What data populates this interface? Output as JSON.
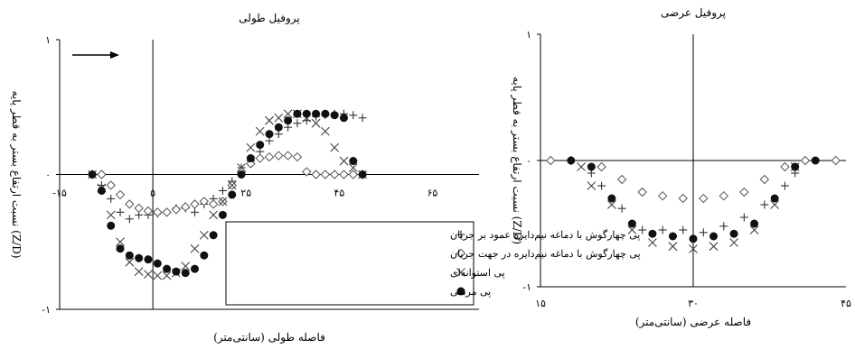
{
  "chart_data": [
    {
      "type": "scatter",
      "title": "پروفیل طولی",
      "xlabel": "فاصله طولی (سانتی‌متر)",
      "ylabel": "نسبت ارتفاع بستر به قطر پایه (Z/D)",
      "xlim": [
        -15,
        75
      ],
      "ylim": [
        -1,
        1
      ],
      "xticks": [
        "-۱۵",
        "۵",
        "۲۵",
        "۴۵",
        "۶۵"
      ],
      "xtick_values": [
        -15,
        5,
        25,
        45,
        65
      ],
      "yticks": [
        "-۱",
        "۰",
        "۱"
      ],
      "ytick_values": [
        -1,
        0,
        1
      ],
      "flow_arrow": "right",
      "legend_position": "bottom-right",
      "series": [
        {
          "name": "پی چهارگوش با دماغه نیم‌دایره عمود بر جریان",
          "marker": "plus",
          "x": [
            -8,
            -6,
            -4,
            -2,
            0,
            2,
            4,
            6,
            8,
            10,
            12,
            14,
            16,
            18,
            20,
            22,
            24,
            26,
            28,
            30,
            32,
            34,
            36,
            38,
            40,
            42,
            44,
            46,
            48,
            50
          ],
          "y": [
            0,
            -0.08,
            -0.18,
            -0.28,
            -0.33,
            -0.3,
            -0.3,
            -0.29,
            -0.28,
            -0.25,
            -0.25,
            -0.28,
            -0.22,
            -0.18,
            -0.12,
            -0.05,
            0.05,
            0.1,
            0.17,
            0.25,
            0.3,
            0.35,
            0.38,
            0.4,
            0.43,
            0.44,
            0.45,
            0.45,
            0.44,
            0.42
          ]
        },
        {
          "name": "پی چهارگوش با دماغه نیم‌دایره در جهت جریان",
          "marker": "diamond",
          "x": [
            -8,
            -6,
            -4,
            -2,
            0,
            2,
            4,
            6,
            8,
            10,
            12,
            14,
            16,
            18,
            20,
            22,
            24,
            26,
            28,
            30,
            32,
            34,
            36,
            38,
            40,
            42,
            44,
            46,
            48,
            50
          ],
          "y": [
            0,
            0,
            -0.08,
            -0.15,
            -0.22,
            -0.25,
            -0.27,
            -0.28,
            -0.28,
            -0.26,
            -0.24,
            -0.22,
            -0.2,
            -0.22,
            -0.2,
            -0.08,
            0.02,
            0.08,
            0.12,
            0.13,
            0.14,
            0.14,
            0.13,
            0.02,
            0,
            0,
            0,
            0,
            0,
            0
          ]
        },
        {
          "name": "پی استوانه‌ای",
          "marker": "cross",
          "x": [
            -8,
            -6,
            -4,
            -2,
            0,
            2,
            4,
            6,
            8,
            10,
            12,
            14,
            16,
            18,
            20,
            22,
            24,
            26,
            28,
            30,
            32,
            34,
            36,
            38,
            40,
            42,
            44,
            46,
            48,
            50
          ],
          "y": [
            0,
            -0.1,
            -0.3,
            -0.5,
            -0.65,
            -0.72,
            -0.74,
            -0.75,
            -0.75,
            -0.73,
            -0.68,
            -0.55,
            -0.45,
            -0.3,
            -0.2,
            -0.08,
            0.05,
            0.2,
            0.32,
            0.4,
            0.42,
            0.45,
            0.45,
            0.42,
            0.38,
            0.32,
            0.2,
            0.1,
            0.05,
            0
          ]
        },
        {
          "name": "پی مربعی",
          "marker": "circle",
          "x": [
            -8,
            -6,
            -4,
            -2,
            0,
            2,
            4,
            6,
            8,
            10,
            12,
            14,
            16,
            18,
            20,
            22,
            24,
            26,
            28,
            30,
            32,
            34,
            36,
            38,
            40,
            42,
            44,
            46,
            48,
            50
          ],
          "y": [
            0,
            -0.12,
            -0.38,
            -0.55,
            -0.6,
            -0.62,
            -0.63,
            -0.66,
            -0.7,
            -0.72,
            -0.73,
            -0.7,
            -0.6,
            -0.45,
            -0.3,
            -0.15,
            0,
            0.12,
            0.22,
            0.3,
            0.35,
            0.4,
            0.45,
            0.45,
            0.45,
            0.45,
            0.44,
            0.42,
            0.1,
            0
          ]
        }
      ]
    },
    {
      "type": "scatter",
      "title": "پروفیل عرضی",
      "xlabel": "فاصله عرضی (سانتی‌متر)",
      "ylabel": "نسبت ارتفاع بستر به قطر پایه (Z/D)",
      "xlim": [
        15,
        45
      ],
      "ylim": [
        -1,
        1
      ],
      "xticks": [
        "۱۵",
        "۳۰",
        "۴۵"
      ],
      "xtick_values": [
        15,
        30,
        45
      ],
      "yticks": [
        "-۱",
        "۰",
        "۱"
      ],
      "ytick_values": [
        -1,
        0,
        1
      ],
      "series": [
        {
          "name": "پی چهارگوش با دماغه نیم‌دایره عمود بر جریان",
          "marker": "plus",
          "x": [
            20,
            21,
            23,
            25,
            27,
            29,
            31,
            33,
            35,
            37,
            39,
            40
          ],
          "y": [
            -0.1,
            -0.2,
            -0.38,
            -0.55,
            -0.55,
            -0.55,
            -0.57,
            -0.52,
            -0.45,
            -0.35,
            -0.2,
            -0.1
          ]
        },
        {
          "name": "پی چهارگوش با دماغه نیم‌دایره در جهت جریان",
          "marker": "diamond",
          "x": [
            16,
            18,
            21,
            23,
            25,
            27,
            29,
            31,
            33,
            35,
            37,
            39,
            41,
            44
          ],
          "y": [
            0,
            0,
            -0.05,
            -0.15,
            -0.25,
            -0.28,
            -0.3,
            -0.3,
            -0.28,
            -0.25,
            -0.15,
            -0.05,
            0,
            0
          ]
        },
        {
          "name": "پی استوانه‌ای",
          "marker": "cross",
          "x": [
            19,
            20,
            22,
            24,
            26,
            28,
            30,
            32,
            34,
            36,
            38,
            40
          ],
          "y": [
            -0.05,
            -0.2,
            -0.35,
            -0.55,
            -0.65,
            -0.68,
            -0.7,
            -0.68,
            -0.65,
            -0.55,
            -0.35,
            -0.05
          ]
        },
        {
          "name": "پی مربعی",
          "marker": "circle",
          "x": [
            18,
            20,
            22,
            24,
            26,
            28,
            30,
            32,
            34,
            36,
            38,
            40,
            42
          ],
          "y": [
            0,
            -0.05,
            -0.3,
            -0.5,
            -0.58,
            -0.6,
            -0.62,
            -0.6,
            -0.58,
            -0.5,
            -0.3,
            -0.05,
            0
          ]
        }
      ]
    }
  ]
}
